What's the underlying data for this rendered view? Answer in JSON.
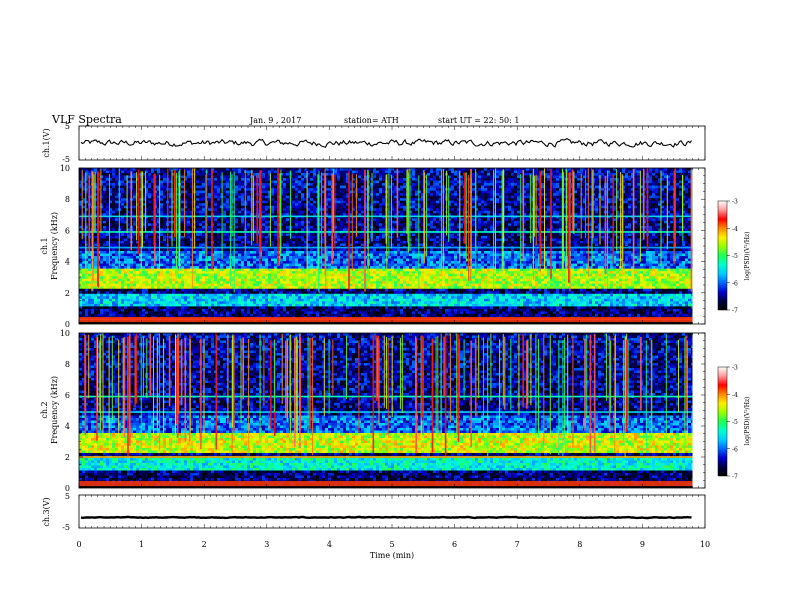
{
  "header": {
    "title": "VLF  Spectra",
    "date": "Jan.  9  , 2017",
    "station": "station= ATH",
    "start_ut": "start  UT  =    22: 50: 1"
  },
  "colors": {
    "trace": "#000000",
    "colormap": [
      "#000000",
      "#000044",
      "#0000cc",
      "#0066ff",
      "#00ccff",
      "#00ffcc",
      "#22ff55",
      "#99ff00",
      "#ffee00",
      "#ff8800",
      "#ff0000",
      "#ff9999",
      "#ffffff"
    ]
  },
  "chart_data": [
    {
      "type": "line",
      "panel": "ch1-waveform",
      "ylabel": "ch.1(V)",
      "ylim": [
        -5,
        5
      ],
      "yticks": [
        "5",
        "-5"
      ],
      "xlim": [
        0,
        10
      ],
      "trace_mean": 0,
      "trace_amplitude": 0.9
    },
    {
      "type": "heatmap",
      "panel": "ch1-spectrogram",
      "ylabel_lines": [
        "ch.1",
        "Frequency  (kHz)"
      ],
      "ylim": [
        0,
        10
      ],
      "yticks": [
        "0",
        "2",
        "4",
        "6",
        "8",
        "10"
      ],
      "xlim": [
        0,
        10
      ],
      "data_extent_min": 9.8,
      "features": [
        {
          "kind": "band",
          "freq_khz": [
            2.2,
            3.6
          ],
          "level": -4.6
        },
        {
          "kind": "band",
          "freq_khz": [
            1.2,
            2.0
          ],
          "level": -5.6
        },
        {
          "kind": "line",
          "freq_khz": 5.9,
          "level": -5.3
        },
        {
          "kind": "line",
          "freq_khz": 6.9,
          "level": -5.6
        },
        {
          "kind": "line",
          "freq_khz": 4.9,
          "level": -5.8
        },
        {
          "kind": "line",
          "freq_khz": 0.3,
          "level": -3.5
        }
      ],
      "colorbar": {
        "label": "log(PSD)(V²/Hz)",
        "range": [
          -7,
          -3
        ],
        "ticks": [
          "-3",
          "-4",
          "-5",
          "-6",
          "-7"
        ]
      }
    },
    {
      "type": "heatmap",
      "panel": "ch2-spectrogram",
      "ylabel_lines": [
        "ch.2",
        "Frequency  (kHz)"
      ],
      "ylim": [
        0,
        10
      ],
      "yticks": [
        "0",
        "2",
        "4",
        "6",
        "8",
        "10"
      ],
      "xlim": [
        0,
        10
      ],
      "data_extent_min": 9.8,
      "features": [
        {
          "kind": "band",
          "freq_khz": [
            2.2,
            3.6
          ],
          "level": -4.5
        },
        {
          "kind": "band",
          "freq_khz": [
            1.2,
            2.0
          ],
          "level": -5.4
        },
        {
          "kind": "line",
          "freq_khz": 5.9,
          "level": -5.3
        },
        {
          "kind": "line",
          "freq_khz": 4.9,
          "level": -5.6
        },
        {
          "kind": "line",
          "freq_khz": 2.0,
          "level": -4.2
        }
      ],
      "colorbar": {
        "label": "log(PSD)(V²/Hz)",
        "range": [
          -7,
          -3
        ],
        "ticks": [
          "-3",
          "-4",
          "-5",
          "-6",
          "-7"
        ]
      }
    },
    {
      "type": "line",
      "panel": "ch3-waveform",
      "ylabel": "ch.3(V)",
      "ylim": [
        -5,
        5
      ],
      "yticks": [
        "5",
        "-5"
      ],
      "xlim": [
        0,
        10
      ],
      "xticks": [
        "0",
        "1",
        "2",
        "3",
        "4",
        "5",
        "6",
        "7",
        "8",
        "9",
        "10"
      ],
      "xlabel": "Time  (min)",
      "trace_mean": -1.8,
      "trace_amplitude": 0.3
    }
  ]
}
